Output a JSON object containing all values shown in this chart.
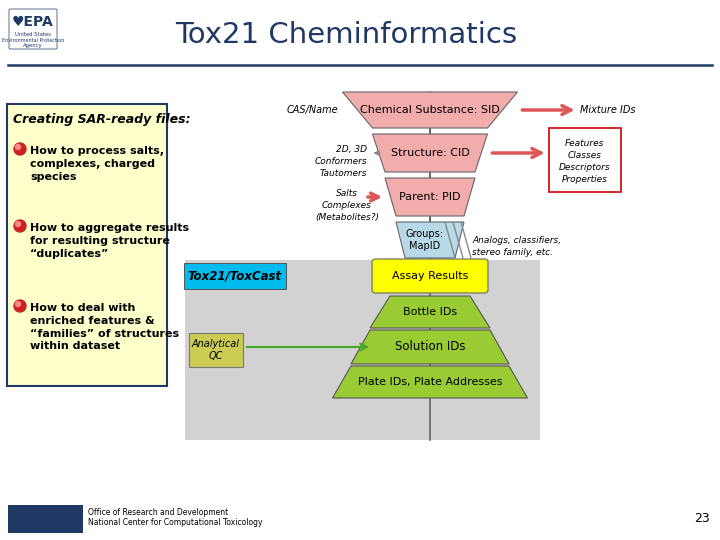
{
  "title": "Tox21 Cheminformatics",
  "title_color": "#1F3864",
  "background_color": "#FFFFFF",
  "header_line_color": "#1F3864",
  "footer_text1": "Office of Research and Development",
  "footer_text2": "National Center for Computational Toxicology",
  "footer_page": "23",
  "left_box_title": "Creating SAR-ready files:",
  "left_box_items": [
    "How to process salts,\ncomplexes, charged\nspecies",
    "How to aggregate results\nfor resulting structure\n“duplicates”",
    "How to deal with\nenriched features &\n“families” of structures\nwithin dataset"
  ],
  "left_box_bg": "#FFFFCC",
  "left_box_border": "#1F3864",
  "pink": "#F2ACAC",
  "groups_color": "#B8D9E8",
  "assay_color": "#FFFF00",
  "tox_box_color": "#00BBEE",
  "pyramid_color": "#99CC33",
  "gray_bg": "#BBBBBB",
  "feat_border": "#CC0000",
  "aqc_bg": "#CCCC55",
  "arrow_pink": "#DD5555",
  "arrow_green": "#44AA22",
  "nav_dark": "#1F3864"
}
